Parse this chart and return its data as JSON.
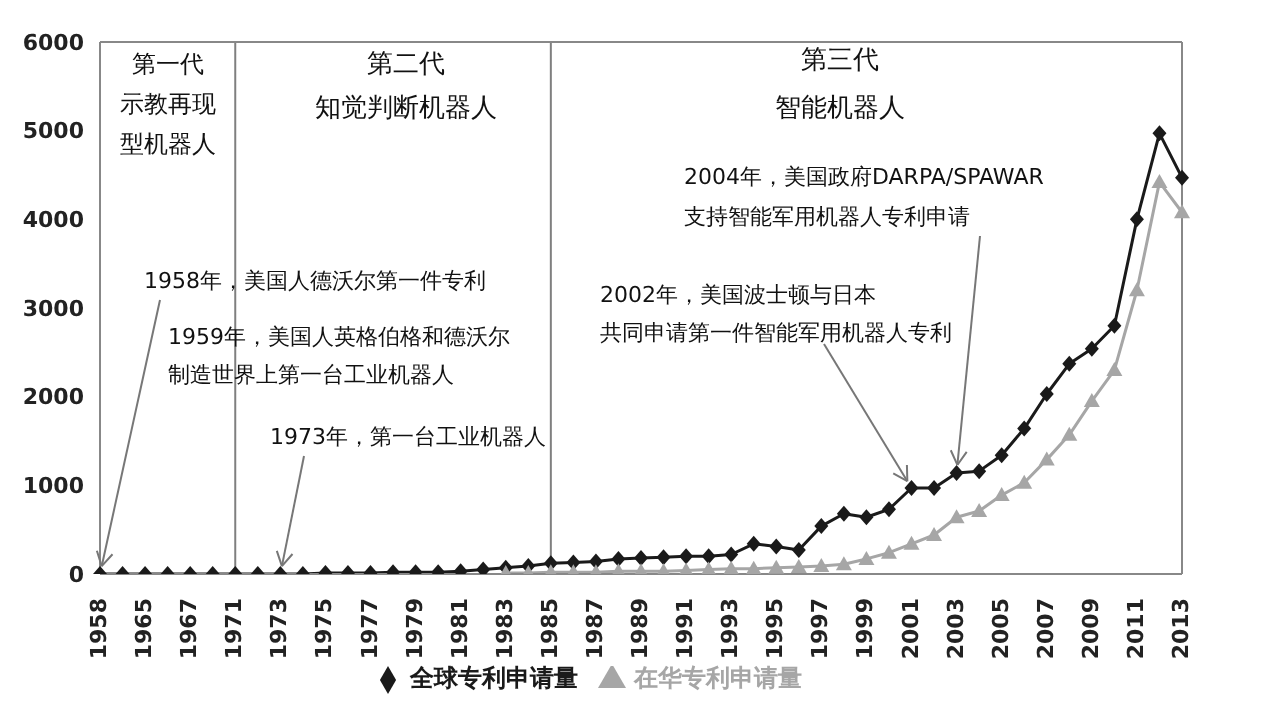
{
  "chart_data": {
    "type": "line",
    "categories": [
      "1958",
      null,
      "1965",
      null,
      "1967",
      null,
      "1971",
      null,
      "1973",
      null,
      "1975",
      null,
      "1977",
      null,
      "1979",
      null,
      "1981",
      null,
      "1983",
      null,
      "1985",
      null,
      "1987",
      null,
      "1989",
      null,
      "1991",
      null,
      "1993",
      null,
      "1995",
      null,
      "1997",
      null,
      "1999",
      null,
      "2001",
      null,
      "2003",
      null,
      "2005",
      null,
      "2007",
      null,
      "2009",
      null,
      "2011",
      null,
      "2013"
    ],
    "series": [
      {
        "name": "全球专利申请量",
        "color": "#1a1a1a",
        "marker": "diamond",
        "values": [
          0,
          0,
          0,
          0,
          0,
          0,
          0,
          0,
          0,
          0,
          10,
          10,
          10,
          20,
          20,
          20,
          30,
          50,
          70,
          90,
          120,
          130,
          140,
          170,
          180,
          190,
          200,
          200,
          220,
          340,
          310,
          270,
          540,
          680,
          640,
          730,
          970,
          970,
          1140,
          1160,
          1340,
          1640,
          2030,
          2370,
          2540,
          2800,
          4000,
          4970,
          4470
        ]
      },
      {
        "name": "在华专利申请量",
        "color": "#a6a6a6",
        "marker": "triangle",
        "values": [
          null,
          null,
          null,
          null,
          null,
          null,
          null,
          null,
          null,
          null,
          null,
          null,
          null,
          null,
          null,
          null,
          null,
          null,
          10,
          10,
          20,
          20,
          20,
          30,
          30,
          30,
          40,
          50,
          60,
          60,
          70,
          80,
          90,
          110,
          170,
          240,
          340,
          440,
          640,
          710,
          890,
          1030,
          1290,
          1570,
          1950,
          2300,
          3200,
          4420,
          4080
        ]
      }
    ],
    "ylim": [
      0,
      6000
    ],
    "yticks": [
      0,
      1000,
      2000,
      3000,
      4000,
      5000,
      6000
    ],
    "legend": "bottom",
    "line_style": "solid",
    "ref_lines": [
      {
        "axis": "x",
        "value": "1971",
        "color": "#7f7f7f"
      },
      {
        "axis": "x",
        "value": "1985",
        "color": "#7f7f7f"
      }
    ],
    "annotations": [
      "第一代示教再现型机器人",
      "第二代知觉判断机器人",
      "第三代智能机器人",
      {
        "text": "1958年，美国人德沃尔第一件专利",
        "x": "1958",
        "y": 0
      },
      "1959年，美国人英格伯格和德沃尔制造世界上第一台工业机器人",
      {
        "text": "1973年，第一台工业机器人",
        "x": "1973",
        "y": 0
      },
      {
        "text": "2002年，美国波士顿与日本共同申请第一件智能军用机器人专利",
        "x": "2001",
        "y": 970
      },
      {
        "text": "2004年，美国政府DARPA/SPAWAR支持智能军用机器人专利申请",
        "x": "2003",
        "y": 1140
      }
    ]
  }
}
